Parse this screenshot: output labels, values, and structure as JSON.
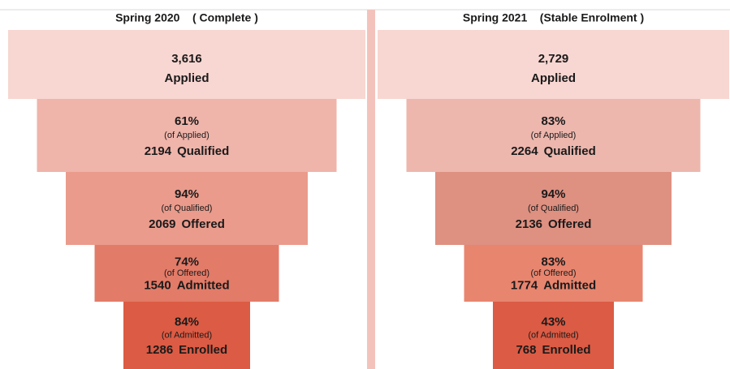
{
  "chart_data": [
    {
      "type": "funnel",
      "title": "Spring 2020    ( Complete )",
      "categories": [
        "Applied",
        "Qualified",
        "Offered",
        "Admitted",
        "Enrolled"
      ],
      "values": [
        3616,
        2194,
        2069,
        1540,
        1286
      ],
      "value_labels": [
        "3,616",
        "2194",
        "2069",
        "1540",
        "1286"
      ],
      "percents": [
        null,
        61,
        94,
        74,
        84
      ],
      "percent_labels": [
        null,
        "61%",
        "94%",
        "74%",
        "84%"
      ],
      "percent_notes": [
        null,
        "(of Applied)",
        "(of Qualified)",
        "(of Offered)",
        "(of Admitted)"
      ],
      "colors": [
        "#f8d6d1",
        "#efb4aa",
        "#ea9b8c",
        "#e27b68",
        "#dc5b44"
      ]
    },
    {
      "type": "funnel",
      "title": "Spring 2021    (Stable Enrolment )",
      "categories": [
        "Applied",
        "Qualified",
        "Offered",
        "Admitted",
        "Enrolled"
      ],
      "values": [
        2729,
        2264,
        2136,
        1774,
        768
      ],
      "value_labels": [
        "2,729",
        "2264",
        "2136",
        "1774",
        "768"
      ],
      "percents": [
        null,
        83,
        94,
        83,
        43
      ],
      "percent_labels": [
        null,
        "83%",
        "94%",
        "83%",
        "43%"
      ],
      "percent_notes": [
        null,
        "(of Applied)",
        "(of Qualified)",
        "(of Offered)",
        "(of Admitted)"
      ],
      "colors": [
        "#f8d6d1",
        "#edb7ae",
        "#de9081",
        "#e8856f",
        "#dc5b44"
      ]
    }
  ]
}
